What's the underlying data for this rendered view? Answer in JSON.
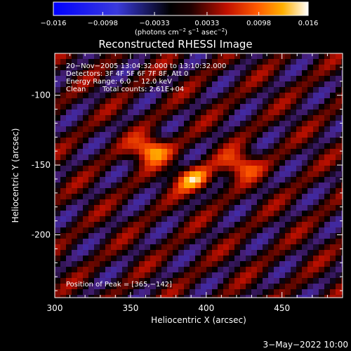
{
  "chart_data": {
    "type": "heatmap",
    "title": "Reconstructed RHESSI Image",
    "xlabel": "Heliocentric X (arcsec)",
    "ylabel": "Heliocentric Y (arcsec)",
    "xlim": [
      300,
      490
    ],
    "ylim": [
      -245,
      -70
    ],
    "xticks": [
      "300",
      "350",
      "400",
      "450"
    ],
    "yticks": [
      "-100",
      "-150",
      "-200"
    ],
    "xtick_values": [
      300,
      350,
      400,
      450
    ],
    "ytick_values": [
      -100,
      -150,
      -200
    ],
    "colorbar": {
      "min": -0.016,
      "max": 0.016,
      "ticks": [
        "−0.016",
        "−0.0098",
        "−0.0033",
        "0.0033",
        "0.0098",
        "0.016"
      ],
      "tick_values": [
        -0.016,
        -0.0098,
        -0.0033,
        0.0033,
        0.0098,
        0.016
      ],
      "unit_main": "(photons cm",
      "unit_sup1": "−2",
      "unit_mid": " s",
      "unit_sup2": "−1",
      "unit_mid2": " asec",
      "unit_sup3": "−2",
      "unit_end": ")"
    },
    "annotations": {
      "line1": "20−Nov−2005 13:04:32.000 to 13:10:32.000",
      "line2": "Detectors: 3F 4F 5F 6F 7F 8F, Att 0",
      "line3": "Energy Range: 6.0 − 12.0 keV",
      "line4_a": "Clean",
      "line4_b": "Total counts: 2.61E+04",
      "peak": "Position of Peak = [365,−142]"
    },
    "peaks": [
      {
        "x": 363,
        "y": -139,
        "value": 0.016
      },
      {
        "x": 392,
        "y": -160,
        "value": 0.0135
      },
      {
        "x": 422,
        "y": -150,
        "value": 0.0125
      }
    ],
    "date_stamp": "3−May−2022 10:00"
  }
}
